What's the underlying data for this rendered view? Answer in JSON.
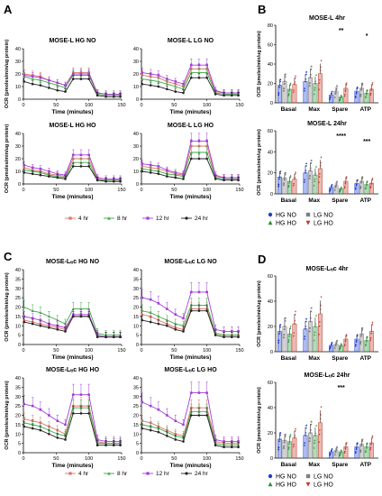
{
  "figure": {
    "panels": [
      "A",
      "B",
      "C",
      "D"
    ],
    "legend_time": [
      "4 hr",
      "8 hr",
      "12 hr",
      "24 hr"
    ],
    "legend_groups": [
      "HG NO",
      "LG NO",
      "HG HO",
      "LG HO"
    ]
  },
  "chart_data": [
    {
      "id": "A1",
      "type": "line",
      "title": "MOSE-L HG NO",
      "xlabel": "Time (minutes)",
      "ylabel": "OCR (pmoles/min/ug protein)",
      "xlim": [
        0,
        150
      ],
      "ylim": [
        0,
        40
      ],
      "xticks": [
        "0",
        "50",
        "100",
        "150"
      ],
      "yticks": [
        "0",
        "10",
        "20",
        "30",
        "40"
      ],
      "x": [
        1,
        14,
        26,
        39,
        52,
        64,
        76,
        88,
        100,
        113,
        126,
        138,
        148
      ],
      "series": [
        {
          "name": "4 hr",
          "values": [
            20,
            19,
            18,
            15,
            13,
            11,
            21,
            21,
            21,
            5,
            4,
            4,
            4
          ]
        },
        {
          "name": "8 hr",
          "values": [
            18,
            16,
            15,
            13,
            11,
            9,
            19,
            19,
            19,
            4,
            3,
            3,
            3
          ]
        },
        {
          "name": "12 hr",
          "values": [
            19,
            18,
            17,
            15,
            13,
            11,
            20,
            20,
            20,
            5,
            4,
            4,
            4
          ]
        },
        {
          "name": "24 hr",
          "values": [
            14,
            12,
            11,
            9,
            7,
            6,
            16,
            16,
            16,
            3,
            2,
            2,
            2
          ]
        }
      ]
    },
    {
      "id": "A2",
      "type": "line",
      "title": "MOSE-L LG NO",
      "xlabel": "Time (minutes)",
      "ylabel": "",
      "xlim": [
        0,
        150
      ],
      "ylim": [
        0,
        40
      ],
      "xticks": [
        "0",
        "50",
        "100",
        "150"
      ],
      "yticks": [
        "0",
        "10",
        "20",
        "30",
        "40"
      ],
      "x": [
        1,
        14,
        26,
        39,
        52,
        64,
        76,
        88,
        100,
        113,
        126,
        138,
        148
      ],
      "series": [
        {
          "name": "4 hr",
          "values": [
            19,
            18,
            17,
            14,
            12,
            10,
            24,
            24,
            24,
            6,
            5,
            5,
            5
          ]
        },
        {
          "name": "8 hr",
          "values": [
            16,
            15,
            14,
            12,
            10,
            8,
            21,
            21,
            21,
            5,
            4,
            4,
            4
          ]
        },
        {
          "name": "12 hr",
          "values": [
            21,
            20,
            19,
            16,
            14,
            12,
            27,
            27,
            27,
            7,
            5,
            5,
            5
          ]
        },
        {
          "name": "24 hr",
          "values": [
            12,
            11,
            10,
            8,
            6,
            5,
            17,
            17,
            17,
            4,
            3,
            3,
            3
          ]
        }
      ]
    },
    {
      "id": "A3",
      "type": "line",
      "title": "MOSE-L HG HO",
      "xlabel": "Time (minutes)",
      "ylabel": "OCR (pmoles/min/ug protein)",
      "xlim": [
        0,
        150
      ],
      "ylim": [
        0,
        40
      ],
      "xticks": [
        "0",
        "50",
        "100",
        "150"
      ],
      "yticks": [
        "0",
        "10",
        "20",
        "30",
        "40"
      ],
      "x": [
        1,
        14,
        26,
        39,
        52,
        64,
        76,
        88,
        100,
        113,
        126,
        138,
        148
      ],
      "series": [
        {
          "name": "4 hr",
          "values": [
            13,
            11,
            10,
            8,
            7,
            6,
            20,
            20,
            20,
            4,
            3,
            3,
            3
          ]
        },
        {
          "name": "8 hr",
          "values": [
            11,
            10,
            9,
            7,
            6,
            5,
            17,
            17,
            17,
            3,
            3,
            3,
            3
          ]
        },
        {
          "name": "12 hr",
          "values": [
            15,
            13,
            12,
            10,
            8,
            7,
            23,
            23,
            23,
            5,
            4,
            4,
            4
          ]
        },
        {
          "name": "24 hr",
          "values": [
            9,
            8,
            7,
            6,
            5,
            4,
            14,
            14,
            14,
            3,
            2,
            2,
            2
          ]
        }
      ]
    },
    {
      "id": "A4",
      "type": "line",
      "title": "MOSE-L LG HO",
      "xlabel": "Time (minutes)",
      "ylabel": "",
      "xlim": [
        0,
        150
      ],
      "ylim": [
        0,
        40
      ],
      "xticks": [
        "0",
        "50",
        "100",
        "150"
      ],
      "yticks": [
        "0",
        "10",
        "20",
        "30",
        "40"
      ],
      "x": [
        1,
        14,
        26,
        39,
        52,
        64,
        76,
        88,
        100,
        113,
        126,
        138,
        148
      ],
      "series": [
        {
          "name": "4 hr",
          "values": [
            14,
            13,
            12,
            10,
            8,
            7,
            30,
            30,
            30,
            6,
            5,
            5,
            5
          ]
        },
        {
          "name": "8 hr",
          "values": [
            12,
            11,
            10,
            8,
            7,
            6,
            25,
            25,
            25,
            5,
            4,
            4,
            4
          ]
        },
        {
          "name": "12 hr",
          "values": [
            16,
            15,
            14,
            11,
            9,
            8,
            34,
            34,
            34,
            7,
            5,
            5,
            5
          ]
        },
        {
          "name": "24 hr",
          "values": [
            10,
            9,
            8,
            6,
            5,
            4,
            20,
            20,
            20,
            4,
            3,
            3,
            3
          ]
        }
      ]
    },
    {
      "id": "C1",
      "type": "line",
      "title": "MOSE-Lₜᵢc HG NO",
      "xlabel": "Time (minutes)",
      "ylabel": "OCR (pmoles/min/ug protein)",
      "xlim": [
        0,
        150
      ],
      "ylim": [
        0,
        40
      ],
      "xticks": [
        "0",
        "50",
        "100",
        "150"
      ],
      "yticks": [
        "0",
        "5",
        "10",
        "15",
        "20",
        "25",
        "30",
        "35",
        "40"
      ],
      "x": [
        1,
        14,
        26,
        39,
        52,
        64,
        76,
        88,
        100,
        113,
        126,
        138,
        148
      ],
      "series": [
        {
          "name": "4 hr",
          "values": [
            13,
            12,
            11,
            10,
            9,
            8,
            15,
            15,
            15,
            5,
            4,
            4,
            4
          ]
        },
        {
          "name": "8 hr",
          "values": [
            20,
            18,
            17,
            15,
            13,
            11,
            19,
            19,
            19,
            6,
            5,
            5,
            5
          ]
        },
        {
          "name": "12 hr",
          "values": [
            15,
            14,
            13,
            11,
            10,
            9,
            16,
            16,
            16,
            5,
            4,
            4,
            4
          ]
        },
        {
          "name": "24 hr",
          "values": [
            12,
            11,
            10,
            9,
            8,
            7,
            15,
            15,
            15,
            4,
            4,
            4,
            4
          ]
        }
      ]
    },
    {
      "id": "C2",
      "type": "line",
      "title": "MOSE-Lₜᵢc LG NO",
      "xlabel": "Time (minutes)",
      "ylabel": "",
      "xlim": [
        0,
        150
      ],
      "ylim": [
        0,
        40
      ],
      "xticks": [
        "0",
        "50",
        "100",
        "150"
      ],
      "yticks": [
        "0",
        "5",
        "10",
        "15",
        "20",
        "25",
        "30",
        "35",
        "40"
      ],
      "x": [
        1,
        14,
        26,
        39,
        52,
        64,
        76,
        88,
        100,
        113,
        126,
        138,
        148
      ],
      "series": [
        {
          "name": "4 hr",
          "values": [
            16,
            15,
            13,
            11,
            9,
            8,
            19,
            19,
            19,
            6,
            5,
            5,
            5
          ]
        },
        {
          "name": "8 hr",
          "values": [
            18,
            17,
            15,
            13,
            11,
            10,
            21,
            21,
            21,
            6,
            5,
            5,
            5
          ]
        },
        {
          "name": "12 hr",
          "values": [
            25,
            24,
            22,
            19,
            16,
            14,
            28,
            28,
            28,
            8,
            7,
            7,
            7
          ]
        },
        {
          "name": "24 hr",
          "values": [
            13,
            12,
            11,
            10,
            8,
            7,
            18,
            18,
            18,
            5,
            4,
            4,
            4
          ]
        }
      ]
    },
    {
      "id": "C3",
      "type": "line",
      "title": "MOSE-Lₜᵢc HG HO",
      "xlabel": "Time (minutes)",
      "ylabel": "OCR (pmoles/min/ug protein)",
      "xlim": [
        0,
        150
      ],
      "ylim": [
        0,
        40
      ],
      "xticks": [
        "0",
        "50",
        "100",
        "150"
      ],
      "yticks": [
        "0",
        "5",
        "10",
        "15",
        "20",
        "25",
        "30",
        "35",
        "40"
      ],
      "x": [
        1,
        14,
        26,
        39,
        52,
        64,
        76,
        88,
        100,
        113,
        126,
        138,
        148
      ],
      "series": [
        {
          "name": "4 hr",
          "values": [
            18,
            17,
            16,
            14,
            12,
            10,
            25,
            25,
            25,
            6,
            5,
            5,
            5
          ]
        },
        {
          "name": "8 hr",
          "values": [
            16,
            15,
            14,
            12,
            10,
            9,
            24,
            24,
            24,
            5,
            5,
            5,
            5
          ]
        },
        {
          "name": "12 hr",
          "values": [
            26,
            25,
            23,
            20,
            17,
            15,
            31,
            31,
            31,
            7,
            6,
            6,
            6
          ]
        },
        {
          "name": "24 hr",
          "values": [
            14,
            13,
            12,
            10,
            8,
            7,
            21,
            21,
            21,
            4,
            4,
            4,
            4
          ]
        }
      ]
    },
    {
      "id": "C4",
      "type": "line",
      "title": "MOSE-Lₜᵢc LG HO",
      "xlabel": "Time (minutes)",
      "ylabel": "",
      "xlim": [
        0,
        150
      ],
      "ylim": [
        0,
        40
      ],
      "xticks": [
        "0",
        "50",
        "100",
        "150"
      ],
      "yticks": [
        "0",
        "5",
        "10",
        "15",
        "20",
        "25",
        "30",
        "35",
        "40"
      ],
      "x": [
        1,
        14,
        26,
        39,
        52,
        64,
        76,
        88,
        100,
        113,
        126,
        138,
        148
      ],
      "series": [
        {
          "name": "4 hr",
          "values": [
            17,
            16,
            14,
            12,
            10,
            9,
            24,
            24,
            24,
            6,
            5,
            5,
            5
          ]
        },
        {
          "name": "8 hr",
          "values": [
            15,
            14,
            13,
            11,
            9,
            8,
            22,
            22,
            22,
            5,
            4,
            4,
            4
          ]
        },
        {
          "name": "12 hr",
          "values": [
            27,
            25,
            23,
            20,
            17,
            15,
            32,
            32,
            32,
            7,
            6,
            6,
            6
          ]
        },
        {
          "name": "24 hr",
          "values": [
            13,
            12,
            11,
            9,
            7,
            6,
            20,
            20,
            20,
            4,
            3,
            3,
            3
          ]
        }
      ]
    },
    {
      "id": "B1",
      "type": "bar",
      "title": "MOSE-L 4hr",
      "xlabel": "",
      "ylabel": "OCR (pmoles/min/ug protein)",
      "ylim": [
        0,
        80
      ],
      "yticks": [
        "0",
        "20",
        "40",
        "60",
        "80"
      ],
      "categories": [
        "Basal",
        "Max",
        "Spare",
        "ATP"
      ],
      "series": [
        {
          "name": "HG NO",
          "values": [
            18,
            22,
            8,
            12
          ]
        },
        {
          "name": "LG NO",
          "values": [
            22,
            26,
            12,
            15
          ]
        },
        {
          "name": "HG HO",
          "values": [
            14,
            20,
            6,
            10
          ]
        },
        {
          "name": "LG HO",
          "values": [
            19,
            30,
            15,
            14
          ]
        }
      ],
      "annotations": [
        "**",
        "*"
      ]
    },
    {
      "id": "B2",
      "type": "bar",
      "title": "MOSE-L 24hr",
      "xlabel": "",
      "ylabel": "OCR (pmoles/min/ug protein)",
      "ylim": [
        0,
        60
      ],
      "yticks": [
        "0",
        "20",
        "40",
        "60"
      ],
      "categories": [
        "Basal",
        "Max",
        "Spare",
        "ATP"
      ],
      "series": [
        {
          "name": "HG NO",
          "values": [
            16,
            20,
            6,
            10
          ]
        },
        {
          "name": "LG NO",
          "values": [
            15,
            22,
            8,
            12
          ]
        },
        {
          "name": "HG HO",
          "values": [
            12,
            18,
            5,
            9
          ]
        },
        {
          "name": "LG HO",
          "values": [
            14,
            24,
            12,
            10
          ]
        }
      ],
      "annotations": [
        "****",
        "***"
      ]
    },
    {
      "id": "D1",
      "type": "bar",
      "title": "MOSE-Lₜᵢc 4hr",
      "xlabel": "",
      "ylabel": "OCR (pmoles/min/ug protein)",
      "ylim": [
        0,
        60
      ],
      "yticks": [
        "0",
        "20",
        "40",
        "60"
      ],
      "categories": [
        "Basal",
        "Max",
        "Spare",
        "ATP"
      ],
      "series": [
        {
          "name": "HG NO",
          "values": [
            16,
            18,
            5,
            10
          ]
        },
        {
          "name": "LG NO",
          "values": [
            20,
            24,
            6,
            14
          ]
        },
        {
          "name": "HG HO",
          "values": [
            14,
            20,
            5,
            9
          ]
        },
        {
          "name": "LG HO",
          "values": [
            22,
            30,
            10,
            16
          ]
        }
      ],
      "annotations": []
    },
    {
      "id": "D2",
      "type": "bar",
      "title": "MOSE-Lₜᵢc 24hr",
      "xlabel": "",
      "ylabel": "OCR (pmoles/min/ug protein)",
      "ylim": [
        0,
        60
      ],
      "yticks": [
        "0",
        "20",
        "40",
        "60"
      ],
      "categories": [
        "Basal",
        "Max",
        "Spare",
        "ATP"
      ],
      "series": [
        {
          "name": "HG NO",
          "values": [
            15,
            18,
            5,
            9
          ]
        },
        {
          "name": "LG NO",
          "values": [
            14,
            20,
            6,
            11
          ]
        },
        {
          "name": "HG HO",
          "values": [
            13,
            18,
            5,
            9
          ]
        },
        {
          "name": "LG HO",
          "values": [
            16,
            28,
            9,
            12
          ]
        }
      ],
      "annotations": [
        "***"
      ]
    }
  ]
}
